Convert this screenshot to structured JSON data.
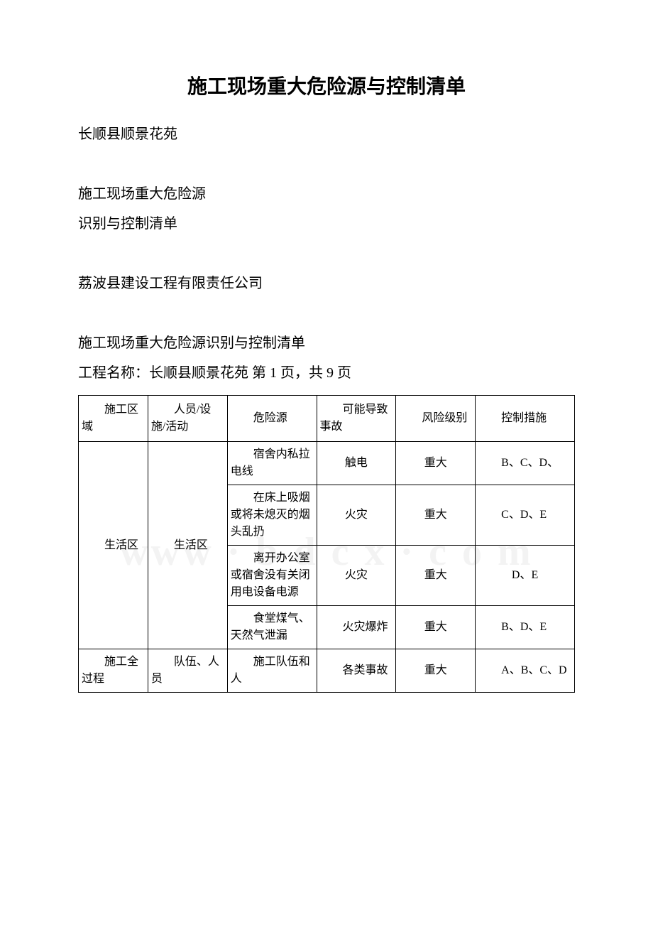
{
  "title": "施工现场重大危险源与控制清单",
  "intro": {
    "line1": "长顺县顺景花苑",
    "line2": "施工现场重大危险源",
    "line3": "识别与控制清单",
    "line4": "荔波县建设工程有限责任公司",
    "line5": "施工现场重大危险源识别与控制清单",
    "line6": "工程名称：长顺县顺景花苑 第 1 页，共 9 页"
  },
  "table": {
    "headers": {
      "c1": "　　施工区域",
      "c2": "　　人员/设施/活动",
      "c3": "　　危险源",
      "c4": "　　可能导致事故",
      "c5": "　　风险级别",
      "c6": "　　控制措施"
    },
    "rows": [
      {
        "c1": "　　生活区",
        "c2": "　　生活区",
        "c3": "　　宿舍内私拉电线",
        "c4": "触电",
        "c5": "重大",
        "c6": "　　B、C、D、",
        "rowspan": 4
      },
      {
        "c3": "　　在床上吸烟或将未熄灭的烟头乱扔",
        "c4": "火灾",
        "c5": "重大",
        "c6": "　　C、D、E"
      },
      {
        "c3": "　　离开办公室或宿舍没有关闭用电设备电源",
        "c4": "火灾",
        "c5": "重大",
        "c6": "D、E"
      },
      {
        "c3": "　　食堂煤气、天然气泄漏",
        "c4": "　　火灾爆炸",
        "c5": "重大",
        "c6": "　　B、D、E"
      },
      {
        "c1": "　　施工全过程",
        "c2": "　　队伍、人员",
        "c3": "　　施工队伍和人",
        "c4": "　　各类事故",
        "c5": "重大",
        "c6": "　　A、B、C、D"
      }
    ]
  },
  "watermark": "www · b d c x · c o m"
}
